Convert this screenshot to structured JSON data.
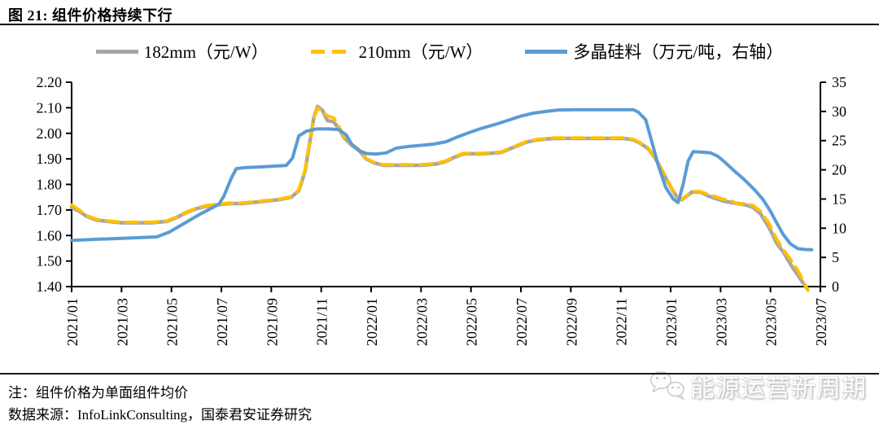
{
  "header": {
    "title": "图 21:  组件价格持续下行"
  },
  "footer": {
    "note": "注：组件价格为单面组件均价",
    "source": "数据来源：InfoLinkConsulting，国泰君安证券研究"
  },
  "watermark": {
    "text": "能源运营新周期",
    "icon": "wechat-icon"
  },
  "chart_data": {
    "type": "line",
    "title": "组件价格持续下行",
    "grid": false,
    "legend_position": "top",
    "x_axis": {
      "unit": "year/month",
      "range_months_from_2021_01": [
        0,
        30
      ],
      "tick_labels": [
        "2021/01",
        "2021/03",
        "2021/05",
        "2021/07",
        "2021/09",
        "2021/11",
        "2022/01",
        "2022/03",
        "2022/05",
        "2022/07",
        "2022/09",
        "2022/11",
        "2023/01",
        "2023/03",
        "2023/05",
        "2023/07"
      ],
      "tick_label_rotation_deg": -90
    },
    "left_y_axis": {
      "label": "元/W",
      "min": 1.4,
      "max": 2.2,
      "tick_labels": [
        "2.20",
        "2.10",
        "2.00",
        "1.90",
        "1.80",
        "1.70",
        "1.60",
        "1.50",
        "1.40"
      ]
    },
    "right_y_axis": {
      "label": "万元/吨",
      "min": 0,
      "max": 35,
      "tick_labels": [
        "35",
        "30",
        "25",
        "20",
        "15",
        "10",
        "5",
        "0"
      ]
    },
    "series": [
      {
        "name": "182mm（元/W）",
        "axis": "left",
        "color": "#a6a6a6",
        "line_style": "solid",
        "points": [
          [
            0,
            1.71
          ],
          [
            0.3,
            1.695
          ],
          [
            0.6,
            1.675
          ],
          [
            1,
            1.66
          ],
          [
            1.5,
            1.655
          ],
          [
            2,
            1.65
          ],
          [
            2.6,
            1.65
          ],
          [
            3.2,
            1.65
          ],
          [
            3.8,
            1.655
          ],
          [
            4.2,
            1.67
          ],
          [
            4.6,
            1.69
          ],
          [
            5,
            1.705
          ],
          [
            5.4,
            1.715
          ],
          [
            5.8,
            1.72
          ],
          [
            6.3,
            1.725
          ],
          [
            6.8,
            1.725
          ],
          [
            7.3,
            1.73
          ],
          [
            7.8,
            1.735
          ],
          [
            8.3,
            1.74
          ],
          [
            8.8,
            1.75
          ],
          [
            9.1,
            1.775
          ],
          [
            9.35,
            1.85
          ],
          [
            9.55,
            1.97
          ],
          [
            9.7,
            2.06
          ],
          [
            9.85,
            2.105
          ],
          [
            10.05,
            2.09
          ],
          [
            10.25,
            2.05
          ],
          [
            10.5,
            2.045
          ],
          [
            10.7,
            2.02
          ],
          [
            10.9,
            1.985
          ],
          [
            11.2,
            1.955
          ],
          [
            11.5,
            1.935
          ],
          [
            11.8,
            1.9
          ],
          [
            12.1,
            1.885
          ],
          [
            12.5,
            1.875
          ],
          [
            13.2,
            1.875
          ],
          [
            14,
            1.875
          ],
          [
            14.6,
            1.88
          ],
          [
            15,
            1.89
          ],
          [
            15.3,
            1.905
          ],
          [
            15.7,
            1.92
          ],
          [
            16.5,
            1.92
          ],
          [
            17.2,
            1.925
          ],
          [
            17.7,
            1.945
          ],
          [
            18.2,
            1.965
          ],
          [
            18.7,
            1.975
          ],
          [
            19.3,
            1.98
          ],
          [
            20.2,
            1.98
          ],
          [
            21.2,
            1.98
          ],
          [
            22.1,
            1.98
          ],
          [
            22.5,
            1.975
          ],
          [
            22.8,
            1.96
          ],
          [
            23.1,
            1.94
          ],
          [
            23.4,
            1.9
          ],
          [
            23.7,
            1.845
          ],
          [
            24,
            1.79
          ],
          [
            24.25,
            1.75
          ],
          [
            24.45,
            1.74
          ],
          [
            24.65,
            1.755
          ],
          [
            24.85,
            1.77
          ],
          [
            25.2,
            1.77
          ],
          [
            25.5,
            1.755
          ],
          [
            25.8,
            1.745
          ],
          [
            26.1,
            1.735
          ],
          [
            26.4,
            1.73
          ],
          [
            26.7,
            1.725
          ],
          [
            27,
            1.72
          ],
          [
            27.3,
            1.71
          ],
          [
            27.6,
            1.685
          ],
          [
            27.95,
            1.63
          ],
          [
            28.25,
            1.57
          ],
          [
            28.55,
            1.53
          ],
          [
            28.85,
            1.48
          ],
          [
            29.1,
            1.445
          ],
          [
            29.3,
            1.415
          ],
          [
            29.45,
            1.395
          ]
        ]
      },
      {
        "name": "210mm（元/W）",
        "axis": "left",
        "color": "#ffc000",
        "line_style": "dashed",
        "points": [
          [
            0,
            1.72
          ],
          [
            0.3,
            1.7
          ],
          [
            0.6,
            1.678
          ],
          [
            1,
            1.663
          ],
          [
            1.5,
            1.657
          ],
          [
            2,
            1.652
          ],
          [
            2.6,
            1.652
          ],
          [
            3.2,
            1.652
          ],
          [
            3.8,
            1.657
          ],
          [
            4.2,
            1.672
          ],
          [
            4.6,
            1.692
          ],
          [
            5,
            1.707
          ],
          [
            5.4,
            1.717
          ],
          [
            5.8,
            1.722
          ],
          [
            6.3,
            1.727
          ],
          [
            6.8,
            1.727
          ],
          [
            7.3,
            1.732
          ],
          [
            7.8,
            1.737
          ],
          [
            8.3,
            1.742
          ],
          [
            8.8,
            1.752
          ],
          [
            9.1,
            1.778
          ],
          [
            9.35,
            1.855
          ],
          [
            9.55,
            1.972
          ],
          [
            9.7,
            2.058
          ],
          [
            9.85,
            2.1
          ],
          [
            10.05,
            2.085
          ],
          [
            10.25,
            2.068
          ],
          [
            10.5,
            2.06
          ],
          [
            10.7,
            2.028
          ],
          [
            10.9,
            1.988
          ],
          [
            11.2,
            1.958
          ],
          [
            11.5,
            1.938
          ],
          [
            11.8,
            1.902
          ],
          [
            12.1,
            1.887
          ],
          [
            12.5,
            1.877
          ],
          [
            13.2,
            1.877
          ],
          [
            14,
            1.877
          ],
          [
            14.6,
            1.882
          ],
          [
            15,
            1.892
          ],
          [
            15.3,
            1.907
          ],
          [
            15.7,
            1.922
          ],
          [
            16.5,
            1.922
          ],
          [
            17.2,
            1.927
          ],
          [
            17.7,
            1.947
          ],
          [
            18.2,
            1.967
          ],
          [
            18.7,
            1.977
          ],
          [
            19.3,
            1.982
          ],
          [
            20.2,
            1.982
          ],
          [
            21.2,
            1.982
          ],
          [
            22.1,
            1.982
          ],
          [
            22.5,
            1.977
          ],
          [
            22.8,
            1.962
          ],
          [
            23.1,
            1.942
          ],
          [
            23.4,
            1.902
          ],
          [
            23.7,
            1.848
          ],
          [
            24,
            1.792
          ],
          [
            24.25,
            1.752
          ],
          [
            24.45,
            1.742
          ],
          [
            24.65,
            1.757
          ],
          [
            24.85,
            1.772
          ],
          [
            25.2,
            1.772
          ],
          [
            25.5,
            1.76
          ],
          [
            25.8,
            1.752
          ],
          [
            26.1,
            1.742
          ],
          [
            26.4,
            1.737
          ],
          [
            26.7,
            1.722
          ],
          [
            27,
            1.727
          ],
          [
            27.3,
            1.717
          ],
          [
            27.6,
            1.695
          ],
          [
            27.95,
            1.645
          ],
          [
            28.25,
            1.585
          ],
          [
            28.55,
            1.54
          ],
          [
            28.85,
            1.5
          ],
          [
            29.1,
            1.462
          ],
          [
            29.3,
            1.425
          ],
          [
            29.5,
            1.385
          ]
        ]
      },
      {
        "name": "多晶硅料（万元/吨，右轴）",
        "axis": "right",
        "color": "#5b9bd5",
        "line_style": "solid",
        "points": [
          [
            0,
            7.9
          ],
          [
            0.5,
            8.0
          ],
          [
            1,
            8.1
          ],
          [
            1.6,
            8.2
          ],
          [
            2.2,
            8.3
          ],
          [
            2.8,
            8.4
          ],
          [
            3.4,
            8.5
          ],
          [
            3.9,
            9.3
          ],
          [
            4.3,
            10.3
          ],
          [
            4.7,
            11.3
          ],
          [
            5.1,
            12.3
          ],
          [
            5.5,
            13.2
          ],
          [
            5.9,
            14.1
          ],
          [
            6.1,
            15.5
          ],
          [
            6.4,
            18.6
          ],
          [
            6.6,
            20.2
          ],
          [
            7,
            20.4
          ],
          [
            7.6,
            20.5
          ],
          [
            8.2,
            20.65
          ],
          [
            8.6,
            20.75
          ],
          [
            8.85,
            22
          ],
          [
            9.1,
            25.8
          ],
          [
            9.4,
            26.6
          ],
          [
            9.8,
            27
          ],
          [
            10.3,
            27
          ],
          [
            10.7,
            26.9
          ],
          [
            11,
            26
          ],
          [
            11.2,
            24.5
          ],
          [
            11.5,
            23.3
          ],
          [
            11.8,
            22.8
          ],
          [
            12.2,
            22.7
          ],
          [
            12.6,
            22.9
          ],
          [
            13,
            23.7
          ],
          [
            13.5,
            24
          ],
          [
            14,
            24.2
          ],
          [
            14.5,
            24.4
          ],
          [
            15,
            24.8
          ],
          [
            15.5,
            25.7
          ],
          [
            16,
            26.5
          ],
          [
            16.5,
            27.2
          ],
          [
            17,
            27.8
          ],
          [
            17.5,
            28.5
          ],
          [
            18,
            29.2
          ],
          [
            18.5,
            29.7
          ],
          [
            19,
            30
          ],
          [
            19.5,
            30.25
          ],
          [
            20.2,
            30.3
          ],
          [
            21.2,
            30.3
          ],
          [
            22.5,
            30.3
          ],
          [
            22.7,
            29.9
          ],
          [
            23,
            28.6
          ],
          [
            23.2,
            25.5
          ],
          [
            23.5,
            20.8
          ],
          [
            23.8,
            17
          ],
          [
            24.1,
            15
          ],
          [
            24.3,
            14.4
          ],
          [
            24.5,
            17.5
          ],
          [
            24.7,
            21.5
          ],
          [
            24.9,
            23.1
          ],
          [
            25.2,
            23.05
          ],
          [
            25.6,
            22.9
          ],
          [
            25.9,
            22.3
          ],
          [
            26.2,
            21.2
          ],
          [
            26.5,
            20
          ],
          [
            26.8,
            18.9
          ],
          [
            27.1,
            17.7
          ],
          [
            27.4,
            16.4
          ],
          [
            27.7,
            14.9
          ],
          [
            28,
            12.9
          ],
          [
            28.2,
            11.3
          ],
          [
            28.5,
            9
          ],
          [
            28.8,
            7.3
          ],
          [
            29.1,
            6.5
          ],
          [
            29.4,
            6.35
          ],
          [
            29.65,
            6.3
          ]
        ]
      }
    ]
  }
}
